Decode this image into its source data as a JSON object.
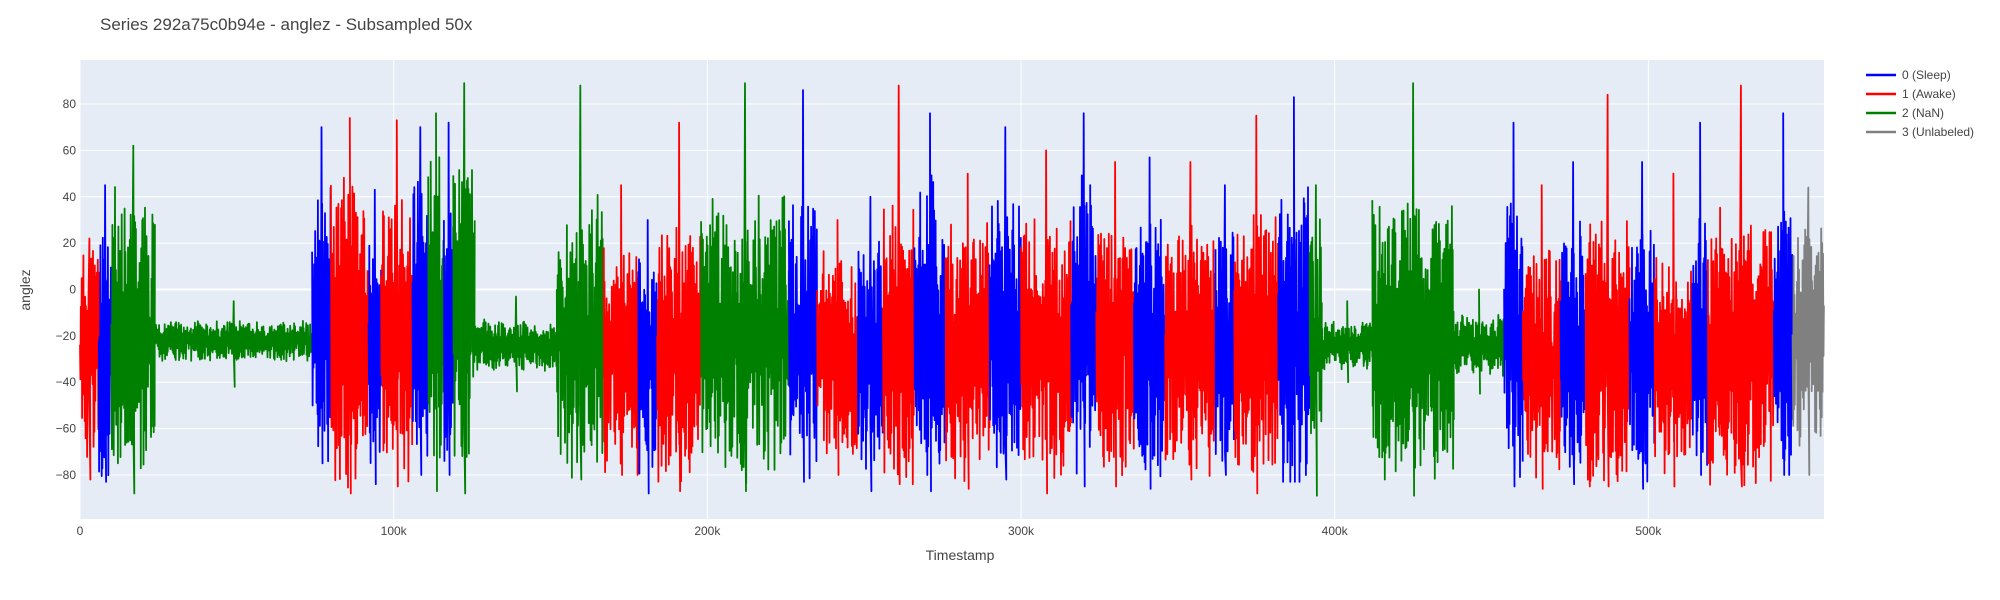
{
  "chart_data": {
    "type": "line",
    "title": "Series 292a75c0b94e - anglez - Subsampled 50x",
    "xlabel": "Timestamp",
    "ylabel": "anglez",
    "xlim": [
      0,
      556000
    ],
    "ylim": [
      -99,
      99
    ],
    "x_ticks": [
      0,
      100000,
      200000,
      300000,
      400000,
      500000
    ],
    "x_tick_labels": [
      "0",
      "100k",
      "200k",
      "300k",
      "400k",
      "500k"
    ],
    "y_ticks": [
      -80,
      -60,
      -40,
      -20,
      0,
      20,
      40,
      60,
      80
    ],
    "y_tick_labels": [
      "−80",
      "−60",
      "−40",
      "−20",
      "0",
      "20",
      "40",
      "60",
      "80"
    ],
    "grid": true,
    "legend_position": "top-right, outside plot",
    "series": [
      {
        "name": "0 (Sleep)",
        "color": "#0000ff"
      },
      {
        "name": "1 (Awake)",
        "color": "#ff0000"
      },
      {
        "name": "2 (NaN)",
        "color": "#008000"
      },
      {
        "name": "3 (Unlabeled)",
        "color": "#808080"
      }
    ],
    "segments": [
      {
        "series": 1,
        "x_start": 0,
        "x_end": 6000,
        "center": -25,
        "amplitude": 45,
        "min": -82,
        "max": 22
      },
      {
        "series": 0,
        "x_start": 6000,
        "x_end": 10000,
        "center": -30,
        "amplitude": 50,
        "min": -83,
        "max": 45
      },
      {
        "series": 2,
        "x_start": 10000,
        "x_end": 24000,
        "center": -20,
        "amplitude": 55,
        "min": -88,
        "max": 62
      },
      {
        "series": 2,
        "x_start": 24000,
        "x_end": 74000,
        "center": -22,
        "amplitude": 8,
        "min": -42,
        "max": -5
      },
      {
        "series": 0,
        "x_start": 74000,
        "x_end": 80000,
        "center": -15,
        "amplitude": 55,
        "min": -75,
        "max": 70
      },
      {
        "series": 1,
        "x_start": 80000,
        "x_end": 92000,
        "center": -20,
        "amplitude": 60,
        "min": -88,
        "max": 74
      },
      {
        "series": 0,
        "x_start": 92000,
        "x_end": 96000,
        "center": -25,
        "amplitude": 50,
        "min": -84,
        "max": 43
      },
      {
        "series": 1,
        "x_start": 96000,
        "x_end": 106000,
        "center": -20,
        "amplitude": 55,
        "min": -85,
        "max": 73
      },
      {
        "series": 0,
        "x_start": 106000,
        "x_end": 111000,
        "center": -15,
        "amplitude": 55,
        "min": -80,
        "max": 70
      },
      {
        "series": 2,
        "x_start": 111000,
        "x_end": 116000,
        "center": -10,
        "amplitude": 60,
        "min": -87,
        "max": 76
      },
      {
        "series": 0,
        "x_start": 116000,
        "x_end": 119000,
        "center": -20,
        "amplitude": 55,
        "min": -80,
        "max": 72
      },
      {
        "series": 2,
        "x_start": 119000,
        "x_end": 126000,
        "center": -10,
        "amplitude": 70,
        "min": -88,
        "max": 89
      },
      {
        "series": 2,
        "x_start": 126000,
        "x_end": 152000,
        "center": -24,
        "amplitude": 10,
        "min": -44,
        "max": -3
      },
      {
        "series": 2,
        "x_start": 152000,
        "x_end": 167000,
        "center": -20,
        "amplitude": 55,
        "min": -82,
        "max": 88
      },
      {
        "series": 1,
        "x_start": 167000,
        "x_end": 178000,
        "center": -30,
        "amplitude": 45,
        "min": -80,
        "max": 45
      },
      {
        "series": 0,
        "x_start": 178000,
        "x_end": 184000,
        "center": -30,
        "amplitude": 45,
        "min": -88,
        "max": 30
      },
      {
        "series": 1,
        "x_start": 184000,
        "x_end": 198000,
        "center": -25,
        "amplitude": 50,
        "min": -87,
        "max": 72
      },
      {
        "series": 2,
        "x_start": 198000,
        "x_end": 226000,
        "center": -20,
        "amplitude": 55,
        "min": -87,
        "max": 89
      },
      {
        "series": 0,
        "x_start": 226000,
        "x_end": 235000,
        "center": -20,
        "amplitude": 55,
        "min": -83,
        "max": 86
      },
      {
        "series": 1,
        "x_start": 235000,
        "x_end": 248000,
        "center": -30,
        "amplitude": 40,
        "min": -80,
        "max": 30
      },
      {
        "series": 0,
        "x_start": 248000,
        "x_end": 256000,
        "center": -30,
        "amplitude": 45,
        "min": -87,
        "max": 40
      },
      {
        "series": 1,
        "x_start": 256000,
        "x_end": 266000,
        "center": -25,
        "amplitude": 55,
        "min": -84,
        "max": 88
      },
      {
        "series": 0,
        "x_start": 266000,
        "x_end": 276000,
        "center": -20,
        "amplitude": 60,
        "min": -87,
        "max": 76
      },
      {
        "series": 1,
        "x_start": 276000,
        "x_end": 290000,
        "center": -25,
        "amplitude": 50,
        "min": -86,
        "max": 50
      },
      {
        "series": 0,
        "x_start": 290000,
        "x_end": 300000,
        "center": -20,
        "amplitude": 55,
        "min": -82,
        "max": 70
      },
      {
        "series": 1,
        "x_start": 300000,
        "x_end": 316000,
        "center": -25,
        "amplitude": 50,
        "min": -88,
        "max": 60
      },
      {
        "series": 0,
        "x_start": 316000,
        "x_end": 324000,
        "center": -20,
        "amplitude": 60,
        "min": -85,
        "max": 76
      },
      {
        "series": 1,
        "x_start": 324000,
        "x_end": 336000,
        "center": -25,
        "amplitude": 50,
        "min": -85,
        "max": 55
      },
      {
        "series": 0,
        "x_start": 336000,
        "x_end": 346000,
        "center": -25,
        "amplitude": 50,
        "min": -86,
        "max": 57
      },
      {
        "series": 1,
        "x_start": 346000,
        "x_end": 362000,
        "center": -25,
        "amplitude": 50,
        "min": -82,
        "max": 55
      },
      {
        "series": 0,
        "x_start": 362000,
        "x_end": 368000,
        "center": -25,
        "amplitude": 50,
        "min": -80,
        "max": 45
      },
      {
        "series": 1,
        "x_start": 368000,
        "x_end": 382000,
        "center": -25,
        "amplitude": 55,
        "min": -88,
        "max": 75
      },
      {
        "series": 0,
        "x_start": 382000,
        "x_end": 392000,
        "center": -20,
        "amplitude": 60,
        "min": -83,
        "max": 83
      },
      {
        "series": 2,
        "x_start": 392000,
        "x_end": 396000,
        "center": -20,
        "amplitude": 45,
        "min": -89,
        "max": 45
      },
      {
        "series": 2,
        "x_start": 396000,
        "x_end": 412000,
        "center": -24,
        "amplitude": 10,
        "min": -40,
        "max": -5
      },
      {
        "series": 2,
        "x_start": 412000,
        "x_end": 438000,
        "center": -20,
        "amplitude": 55,
        "min": -89,
        "max": 89
      },
      {
        "series": 2,
        "x_start": 438000,
        "x_end": 454000,
        "center": -24,
        "amplitude": 12,
        "min": -45,
        "max": 0
      },
      {
        "series": 0,
        "x_start": 454000,
        "x_end": 460000,
        "center": -20,
        "amplitude": 55,
        "min": -85,
        "max": 72
      },
      {
        "series": 1,
        "x_start": 460000,
        "x_end": 472000,
        "center": -30,
        "amplitude": 45,
        "min": -86,
        "max": 45
      },
      {
        "series": 0,
        "x_start": 472000,
        "x_end": 480000,
        "center": -25,
        "amplitude": 50,
        "min": -84,
        "max": 55
      },
      {
        "series": 1,
        "x_start": 480000,
        "x_end": 494000,
        "center": -25,
        "amplitude": 55,
        "min": -85,
        "max": 84
      },
      {
        "series": 0,
        "x_start": 494000,
        "x_end": 502000,
        "center": -25,
        "amplitude": 50,
        "min": -86,
        "max": 55
      },
      {
        "series": 1,
        "x_start": 502000,
        "x_end": 514000,
        "center": -30,
        "amplitude": 45,
        "min": -85,
        "max": 50
      },
      {
        "series": 0,
        "x_start": 514000,
        "x_end": 519000,
        "center": -20,
        "amplitude": 55,
        "min": -80,
        "max": 72
      },
      {
        "series": 1,
        "x_start": 519000,
        "x_end": 540000,
        "center": -25,
        "amplitude": 55,
        "min": -85,
        "max": 88
      },
      {
        "series": 0,
        "x_start": 540000,
        "x_end": 546000,
        "center": -20,
        "amplitude": 55,
        "min": -80,
        "max": 76
      },
      {
        "series": 3,
        "x_start": 546000,
        "x_end": 556000,
        "center": -20,
        "amplitude": 45,
        "min": -80,
        "max": 44
      }
    ]
  }
}
